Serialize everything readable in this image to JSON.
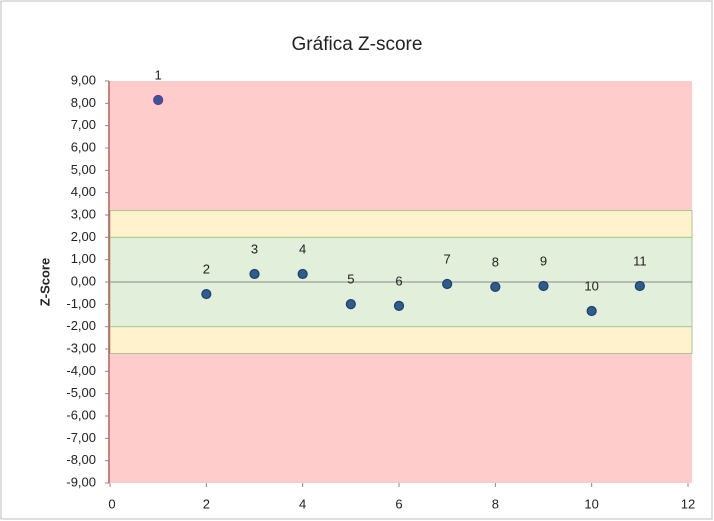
{
  "chart_data": {
    "type": "scatter",
    "title": "Gráfica Z-score",
    "y_label": "Z-Score",
    "x": [
      1,
      2,
      3,
      4,
      5,
      6,
      7,
      8,
      9,
      10,
      11
    ],
    "values": [
      8.15,
      -0.54,
      0.36,
      0.36,
      -0.99,
      -1.07,
      -0.09,
      -0.22,
      -0.18,
      -1.3,
      -0.18
    ],
    "labels": [
      "1",
      "2",
      "3",
      "4",
      "5",
      "6",
      "7",
      "8",
      "9",
      "10",
      "11"
    ],
    "color": "#2e5c8f",
    "xlim": [
      0,
      12
    ],
    "xticks": [
      0,
      2,
      4,
      6,
      8,
      10,
      12
    ],
    "ylim": [
      -9,
      9
    ],
    "yticks": [
      {
        "value": 9,
        "label": "9,00"
      },
      {
        "value": 8,
        "label": "8,00"
      },
      {
        "value": 7,
        "label": "7,00"
      },
      {
        "value": 6,
        "label": "6,00"
      },
      {
        "value": 5,
        "label": "5,00"
      },
      {
        "value": 4,
        "label": "4,00"
      },
      {
        "value": 3,
        "label": "3,00"
      },
      {
        "value": 2,
        "label": "2,00"
      },
      {
        "value": 1,
        "label": "1,00"
      },
      {
        "value": 0,
        "label": "0,00"
      },
      {
        "value": -1,
        "label": "-1,00"
      },
      {
        "value": -2,
        "label": "-2,00"
      },
      {
        "value": -3,
        "label": "-3,00"
      },
      {
        "value": -4,
        "label": "-4,00"
      },
      {
        "value": -5,
        "label": "-5,00"
      },
      {
        "value": -6,
        "label": "-6,00"
      },
      {
        "value": -7,
        "label": "-7,00"
      },
      {
        "value": -8,
        "label": "-8,00"
      },
      {
        "value": -9,
        "label": "-9,00"
      }
    ],
    "bands": [
      {
        "ymin": -9,
        "ymax": 9,
        "color": "#ffcccc"
      },
      {
        "ymin": -3.2,
        "ymax": 3.2,
        "color": "#fff2cc"
      },
      {
        "ymin": -2,
        "ymax": 2,
        "color": "#e2efda"
      }
    ],
    "grid": false
  }
}
